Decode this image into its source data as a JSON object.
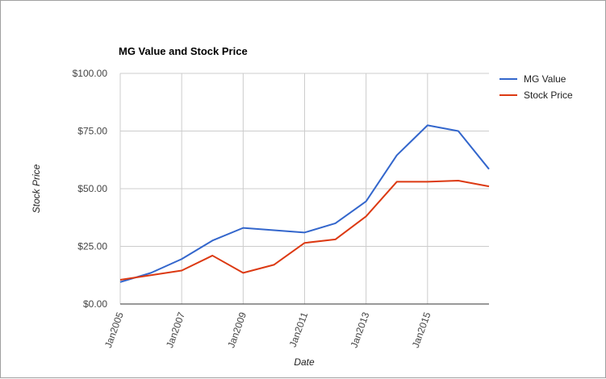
{
  "chart_data": {
    "type": "line",
    "title": "MG Value and Stock Price",
    "xlabel": "Date",
    "ylabel": "Stock Price",
    "ylim": [
      0,
      100
    ],
    "yticks": [
      "$0.00",
      "$25.00",
      "$50.00",
      "$75.00",
      "$100.00"
    ],
    "xlim": [
      2005,
      2017
    ],
    "xticks": [
      "Jan2005",
      "Jan2007",
      "Jan2009",
      "Jan2011",
      "Jan2013",
      "Jan2015"
    ],
    "grid": true,
    "legend_position": "right",
    "x": [
      2005,
      2006,
      2007,
      2008,
      2009,
      2010,
      2011,
      2012,
      2013,
      2014,
      2015,
      2016,
      2017
    ],
    "series": [
      {
        "name": "MG Value",
        "color": "#3366cc",
        "values": [
          9.5,
          13.5,
          19.5,
          27.5,
          33,
          32,
          31,
          35,
          44.5,
          64.5,
          77.5,
          75,
          58.5
        ]
      },
      {
        "name": "Stock Price",
        "color": "#dc3912",
        "values": [
          10.5,
          12.5,
          14.5,
          21,
          13.5,
          17,
          26.5,
          28,
          38,
          53,
          53,
          53.5,
          51
        ]
      }
    ]
  }
}
